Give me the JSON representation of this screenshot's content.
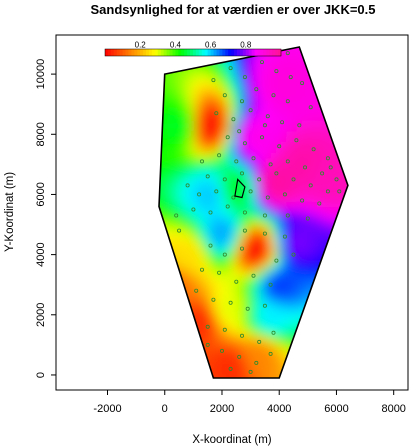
{
  "chart_data": {
    "type": "heatmap",
    "title": "Sandsynlighed for at værdien er over JKK=0.5",
    "xlabel": "X-koordinat (m)",
    "ylabel": "Y-Koordinat (m)",
    "xlim": [
      -3800,
      8500
    ],
    "ylim": [
      -500,
      11300
    ],
    "x_ticks": [
      -2000,
      0,
      2000,
      4000,
      6000,
      8000
    ],
    "y_ticks": [
      0,
      2000,
      4000,
      6000,
      8000,
      10000
    ],
    "x_tick_labels": [
      "-2000",
      "0",
      "2000",
      "4000",
      "6000",
      "8000"
    ],
    "y_tick_labels": [
      "0",
      "2000",
      "4000",
      "6000",
      "8000",
      "10000"
    ],
    "legend": {
      "placement": "top-left",
      "range": [
        0,
        1
      ],
      "ticks": [
        0.2,
        0.4,
        0.6,
        0.8
      ],
      "tick_labels": [
        "0.2",
        "0.4",
        "0.6",
        "0.8"
      ],
      "colors": [
        "#ff0000",
        "#ff8000",
        "#ffff00",
        "#00ff00",
        "#00ffff",
        "#0000ff",
        "#ff00ff",
        "#ff1493"
      ]
    },
    "boundary": [
      [
        0,
        10000
      ],
      [
        4700,
        10900
      ],
      [
        6400,
        6300
      ],
      [
        4000,
        -100
      ],
      [
        1700,
        -100
      ],
      [
        -200,
        5600
      ]
    ],
    "hotspots": [
      {
        "x": 1500,
        "y": 8300,
        "value": 0.02
      },
      {
        "x": 3200,
        "y": 4200,
        "value": 0.02
      },
      {
        "x": 1300,
        "y": 1800,
        "value": 0.05
      },
      {
        "x": 2300,
        "y": 300,
        "value": 0.05
      },
      {
        "x": 3300,
        "y": 700,
        "value": 0.15
      },
      {
        "x": 300,
        "y": 3000,
        "value": 0.12
      },
      {
        "x": 800,
        "y": 4000,
        "value": 0.25
      },
      {
        "x": 2200,
        "y": 2200,
        "value": 0.3
      },
      {
        "x": 600,
        "y": 8300,
        "value": 0.45
      },
      {
        "x": 1600,
        "y": 6000,
        "value": 0.6
      },
      {
        "x": 3200,
        "y": 7900,
        "value": 0.88
      },
      {
        "x": 4200,
        "y": 9600,
        "value": 0.9
      },
      {
        "x": 4800,
        "y": 7000,
        "value": 0.97
      },
      {
        "x": 3900,
        "y": 6400,
        "value": 0.98
      },
      {
        "x": 5700,
        "y": 6600,
        "value": 0.95
      },
      {
        "x": 4600,
        "y": 4400,
        "value": 0.78
      },
      {
        "x": 4000,
        "y": 3000,
        "value": 0.68
      },
      {
        "x": 3700,
        "y": 1900,
        "value": 0.58
      },
      {
        "x": 2000,
        "y": 4700,
        "value": 0.62
      },
      {
        "x": 2500,
        "y": 6200,
        "value": 0.45
      }
    ],
    "samples": [
      [
        1700,
        9800
      ],
      [
        2300,
        10200
      ],
      [
        2800,
        9900
      ],
      [
        3400,
        10400
      ],
      [
        3900,
        10100
      ],
      [
        4300,
        10700
      ],
      [
        2100,
        9300
      ],
      [
        2700,
        9100
      ],
      [
        3200,
        9500
      ],
      [
        3800,
        9300
      ],
      [
        4300,
        9100
      ],
      [
        4800,
        9700
      ],
      [
        1800,
        8700
      ],
      [
        2400,
        8500
      ],
      [
        3000,
        8800
      ],
      [
        3600,
        8600
      ],
      [
        4100,
        8400
      ],
      [
        4700,
        8300
      ],
      [
        5100,
        8900
      ],
      [
        2200,
        7900
      ],
      [
        2800,
        7700
      ],
      [
        3400,
        7900
      ],
      [
        4000,
        7600
      ],
      [
        4600,
        7800
      ],
      [
        5200,
        7500
      ],
      [
        5700,
        7200
      ],
      [
        1300,
        7100
      ],
      [
        1900,
        7300
      ],
      [
        2500,
        7100
      ],
      [
        3100,
        7200
      ],
      [
        3700,
        7000
      ],
      [
        4300,
        7100
      ],
      [
        4900,
        6900
      ],
      [
        5500,
        6700
      ],
      [
        6000,
        6500
      ],
      [
        1500,
        6600
      ],
      [
        2100,
        6500
      ],
      [
        2700,
        6700
      ],
      [
        3300,
        6500
      ],
      [
        3900,
        6700
      ],
      [
        4500,
        6500
      ],
      [
        5100,
        6300
      ],
      [
        5700,
        6100
      ],
      [
        1200,
        6000
      ],
      [
        1800,
        6100
      ],
      [
        2400,
        5900
      ],
      [
        3000,
        6100
      ],
      [
        3600,
        5900
      ],
      [
        4200,
        6000
      ],
      [
        4800,
        5800
      ],
      [
        5400,
        5700
      ],
      [
        1000,
        5500
      ],
      [
        1600,
        5400
      ],
      [
        2200,
        5600
      ],
      [
        2800,
        5400
      ],
      [
        3500,
        5300
      ],
      [
        4300,
        5300
      ],
      [
        5000,
        5200
      ],
      [
        2800,
        4800
      ],
      [
        3500,
        4700
      ],
      [
        4200,
        4600
      ],
      [
        1600,
        4300
      ],
      [
        2100,
        4000
      ],
      [
        2700,
        4200
      ],
      [
        3900,
        3800
      ],
      [
        4500,
        4000
      ],
      [
        1300,
        3500
      ],
      [
        1900,
        3400
      ],
      [
        2500,
        3100
      ],
      [
        3100,
        3300
      ],
      [
        3700,
        3000
      ],
      [
        1100,
        2800
      ],
      [
        1700,
        2500
      ],
      [
        2300,
        2400
      ],
      [
        2900,
        2200
      ],
      [
        3500,
        2300
      ],
      [
        1500,
        1600
      ],
      [
        2100,
        1500
      ],
      [
        2700,
        1300
      ],
      [
        3300,
        1100
      ],
      [
        3800,
        1400
      ],
      [
        2000,
        800
      ],
      [
        2600,
        600
      ],
      [
        3200,
        400
      ],
      [
        3700,
        700
      ],
      [
        2300,
        200
      ],
      [
        3000,
        100
      ],
      [
        1500,
        1000
      ],
      [
        500,
        4800
      ],
      [
        400,
        5300
      ],
      [
        800,
        6300
      ],
      [
        2600,
        8100
      ],
      [
        3500,
        8300
      ],
      [
        4400,
        9900
      ],
      [
        5800,
        6900
      ],
      [
        6100,
        6100
      ]
    ],
    "marked_region": [
      [
        2450,
        5950
      ],
      [
        2550,
        6500
      ],
      [
        2800,
        6250
      ],
      [
        2700,
        5900
      ]
    ]
  }
}
